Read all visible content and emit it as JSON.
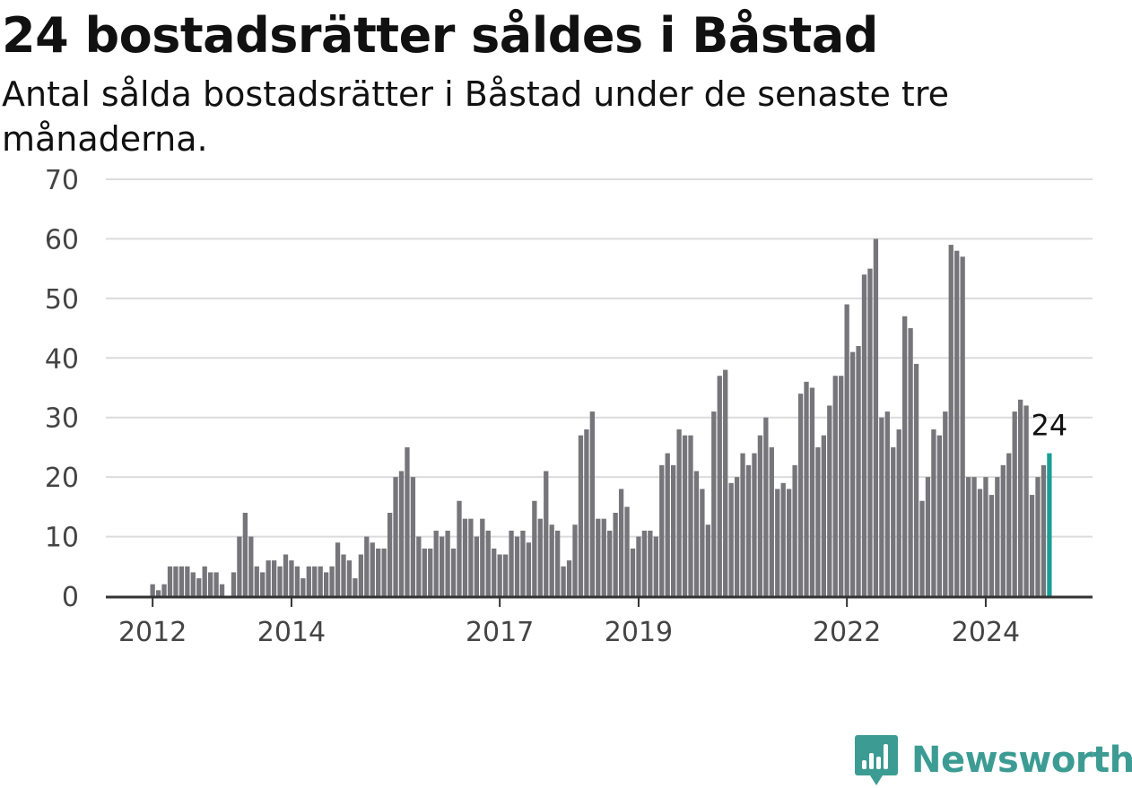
{
  "title": "24 bostadsrätter såldes i Båstad",
  "subtitle": "Antal sålda bostadsrätter i Båstad under de senaste tre månaderna.",
  "brand": {
    "name": "Newsworthy",
    "icon": "newsworthy-logo-icon",
    "color": "#3c9c93"
  },
  "colors": {
    "bar": "#76757a",
    "highlight": "#1b9e96",
    "grid": "#dcdcdc",
    "axis": "#333333"
  },
  "chart_data": {
    "type": "bar",
    "title": "24 bostadsrätter såldes i Båstad",
    "xlabel": "",
    "ylabel": "",
    "ylim": [
      0,
      70
    ],
    "yticks": [
      0,
      10,
      20,
      30,
      40,
      50,
      60,
      70
    ],
    "x_start": "2011-10",
    "xticks": [
      {
        "label": "2012",
        "date": "2012-01"
      },
      {
        "label": "2014",
        "date": "2014-01"
      },
      {
        "label": "2017",
        "date": "2017-01"
      },
      {
        "label": "2019",
        "date": "2019-01"
      },
      {
        "label": "2022",
        "date": "2022-01"
      },
      {
        "label": "2024",
        "date": "2024-01"
      }
    ],
    "grid": true,
    "highlight_last": true,
    "last_value_label": "24",
    "values": [
      0,
      0,
      0,
      2,
      1,
      2,
      5,
      5,
      5,
      5,
      4,
      3,
      5,
      4,
      4,
      2,
      0,
      4,
      10,
      14,
      10,
      5,
      4,
      6,
      6,
      5,
      7,
      6,
      5,
      3,
      5,
      5,
      5,
      4,
      5,
      9,
      7,
      6,
      3,
      7,
      10,
      9,
      8,
      8,
      14,
      20,
      21,
      25,
      20,
      10,
      8,
      8,
      11,
      10,
      11,
      8,
      16,
      13,
      13,
      10,
      13,
      11,
      8,
      7,
      7,
      11,
      10,
      11,
      9,
      16,
      13,
      21,
      12,
      11,
      5,
      6,
      12,
      27,
      28,
      31,
      13,
      13,
      11,
      14,
      18,
      15,
      8,
      10,
      11,
      11,
      10,
      22,
      24,
      22,
      28,
      27,
      27,
      21,
      18,
      12,
      31,
      37,
      38,
      19,
      20,
      24,
      22,
      24,
      27,
      30,
      25,
      18,
      19,
      18,
      22,
      34,
      36,
      35,
      25,
      27,
      32,
      37,
      37,
      49,
      41,
      42,
      54,
      55,
      60,
      30,
      31,
      25,
      28,
      47,
      45,
      39,
      16,
      20,
      28,
      27,
      31,
      59,
      58,
      57,
      20,
      20,
      18,
      20,
      17,
      20,
      22,
      24,
      31,
      33,
      32,
      17,
      20,
      22,
      24
    ]
  }
}
